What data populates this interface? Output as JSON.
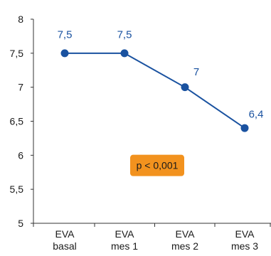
{
  "chart_data": {
    "type": "line",
    "title": "",
    "xlabel": "",
    "ylabel": "",
    "categories": [
      [
        "EVA",
        "basal"
      ],
      [
        "EVA",
        "mes 1"
      ],
      [
        "EVA",
        "mes 2"
      ],
      [
        "EVA",
        "mes 3"
      ]
    ],
    "series": [
      {
        "values": [
          7.5,
          7.5,
          7,
          6.4
        ],
        "labels": [
          "7,5",
          "7,5",
          "7",
          "6,4"
        ]
      }
    ],
    "ylim": [
      5,
      8
    ],
    "yticks": [
      5,
      5.5,
      6,
      6.5,
      7,
      7.5,
      8
    ],
    "ytick_labels": [
      "5",
      "5,5",
      "6",
      "6,5",
      "7",
      "7,5",
      "8"
    ],
    "grid": false,
    "annotation": {
      "text": "p < 0,001",
      "x": 2.9,
      "y": 5.85
    },
    "colors": {
      "line": "#1a52a0",
      "label": "#1a52a0",
      "axis": "#333333",
      "annotation_bg": "#f2921e"
    }
  }
}
